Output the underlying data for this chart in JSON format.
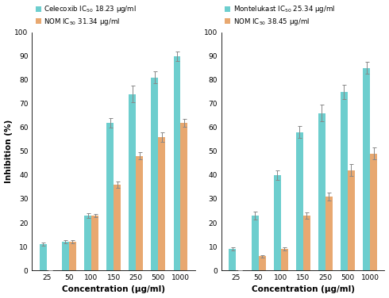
{
  "concentrations": [
    25,
    50,
    100,
    150,
    250,
    500,
    1000
  ],
  "conc_labels": [
    "25",
    "50",
    "100",
    "150",
    "250",
    "500",
    "1000"
  ],
  "left_chart": {
    "standard_name": "Celecoxib",
    "standard_ic50": "18.23",
    "nom_ic50": "31.34",
    "standard_values": [
      11,
      12,
      23,
      62,
      74,
      81,
      90
    ],
    "nom_values": [
      0,
      12,
      23,
      36,
      48,
      56,
      62
    ],
    "standard_errors": [
      0.8,
      0.8,
      1.0,
      2.0,
      3.5,
      2.5,
      2.0
    ],
    "nom_errors": [
      0,
      0.8,
      0.8,
      1.2,
      1.5,
      2.0,
      1.8
    ]
  },
  "right_chart": {
    "standard_name": "Montelukast",
    "standard_ic50": "25.34",
    "nom_ic50": "38.45",
    "standard_values": [
      9,
      23,
      40,
      58,
      66,
      75,
      85
    ],
    "nom_values": [
      0,
      6,
      9,
      23,
      31,
      42,
      49
    ],
    "standard_errors": [
      0.8,
      1.5,
      2.0,
      2.5,
      3.5,
      3.0,
      2.5
    ],
    "nom_errors": [
      0,
      0.5,
      0.8,
      1.2,
      1.8,
      2.5,
      2.5
    ]
  },
  "standard_color": "#6DCECE",
  "nom_color": "#E8A870",
  "ylabel": "Inhibition (%)",
  "xlabel": "Concentration (µg/ml)",
  "yticks": [
    0,
    10,
    20,
    30,
    40,
    50,
    60,
    70,
    80,
    90,
    100
  ],
  "bar_width": 0.32,
  "background_color": "#ffffff"
}
